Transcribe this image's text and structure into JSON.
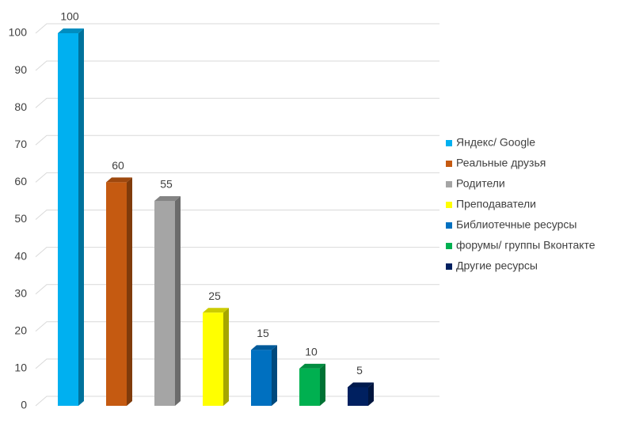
{
  "chart_data": {
    "type": "bar3d",
    "categories": [
      "Яндекс/ Google",
      "Реальные друзья",
      "Родители",
      "Преподаватели",
      "Библиотечные ресурсы",
      "форумы/ группы Вконтакте",
      "Другие ресурсы"
    ],
    "values": [
      100,
      60,
      55,
      25,
      15,
      10,
      5
    ],
    "colors": [
      "#00b0f0",
      "#c55a11",
      "#a5a5a5",
      "#ffff00",
      "#0070c0",
      "#00b050",
      "#002060"
    ],
    "ylim": [
      0,
      100
    ],
    "yticks": [
      0,
      10,
      20,
      30,
      40,
      50,
      60,
      70,
      80,
      90,
      100
    ],
    "grid": true,
    "legend": "right"
  }
}
